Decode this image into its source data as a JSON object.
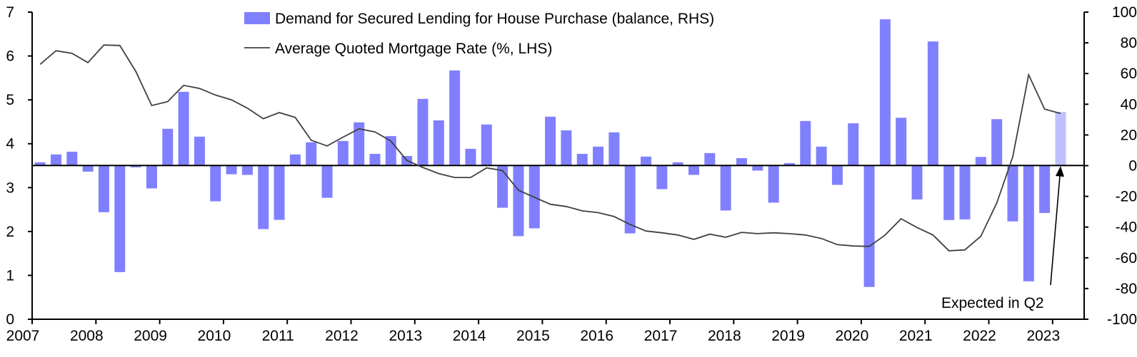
{
  "chart_data": {
    "type": "bar+line",
    "title": "",
    "x_tick_labels": [
      "2007",
      "2008",
      "2009",
      "2010",
      "2011",
      "2012",
      "2013",
      "2014",
      "2015",
      "2016",
      "2017",
      "2018",
      "2019",
      "2020",
      "2021",
      "2022",
      "2023"
    ],
    "left_axis": {
      "label": "",
      "range": [
        0,
        7
      ],
      "ticks": [
        "0",
        "1",
        "2",
        "3",
        "4",
        "5",
        "6",
        "7"
      ]
    },
    "right_axis": {
      "label": "",
      "range": [
        -100,
        100
      ],
      "ticks": [
        "-100",
        "-80",
        "-60",
        "-40",
        "-20",
        "0",
        "20",
        "40",
        "60",
        "80",
        "100"
      ]
    },
    "legend": {
      "placement": "top-center"
    },
    "colors": {
      "bars": "#8080FF",
      "expected_bar": "#C0C0FF",
      "line": "#404040",
      "axis": "#000000"
    },
    "start_quarter": "2007Q1",
    "series": [
      {
        "name": "Demand for Secured Lending for House Purchase (balance, RHS)",
        "type": "bar",
        "axis": "right",
        "values": [
          2.2,
          7.3,
          9.1,
          -3.9,
          -30.3,
          -69.3,
          -1.1,
          -14.8,
          24,
          48.1,
          18.9,
          -23.2,
          -5.6,
          -6,
          -41.3,
          -35.3,
          7.3,
          15.2,
          -20.9,
          16.1,
          28.2,
          7.7,
          19.3,
          6.3,
          43.5,
          29.5,
          62,
          11,
          26.8,
          -27.4,
          -45.9,
          -40.8,
          31.9,
          23,
          7.7,
          12.4,
          21.7,
          -44.1,
          5.9,
          -15.3,
          2.2,
          -6,
          8.2,
          -29.2,
          4.9,
          -3.2,
          -24.1,
          1.7,
          29.1,
          12.4,
          -12.5,
          27.6,
          -79,
          95.3,
          31.2,
          -22,
          80.9,
          -35.4,
          -35,
          5.7,
          30.3,
          -36.3,
          -75.3,
          -30.8,
          35
        ],
        "expected_last": true
      },
      {
        "name": "Average Quoted Mortgage Rate (%, LHS)",
        "type": "line",
        "axis": "left",
        "values": [
          5.81,
          6.12,
          6.06,
          5.85,
          6.25,
          6.24,
          5.65,
          4.87,
          4.96,
          5.33,
          5.26,
          5.11,
          5.0,
          4.81,
          4.57,
          4.71,
          4.6,
          4.08,
          3.95,
          4.15,
          4.34,
          4.27,
          4.06,
          3.62,
          3.46,
          3.32,
          3.23,
          3.23,
          3.45,
          3.39,
          2.94,
          2.78,
          2.62,
          2.57,
          2.47,
          2.43,
          2.34,
          2.16,
          2.01,
          1.97,
          1.92,
          1.82,
          1.94,
          1.87,
          1.98,
          1.95,
          1.97,
          1.95,
          1.92,
          1.84,
          1.7,
          1.67,
          1.66,
          1.92,
          2.29,
          2.09,
          1.92,
          1.56,
          1.58,
          1.89,
          2.65,
          3.7,
          5.57,
          4.79,
          4.69
        ]
      }
    ],
    "annotations": [
      {
        "text": "Expected in Q2",
        "points_to": "last bar"
      }
    ]
  }
}
